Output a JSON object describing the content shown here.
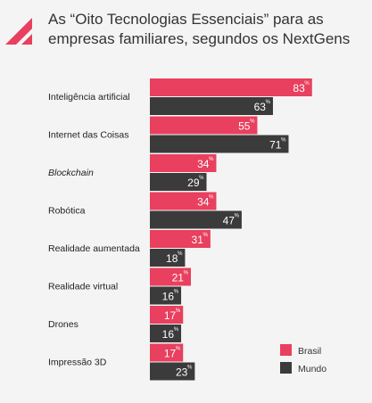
{
  "title": "As “Oito Tecnologias Essenciais” para as empresas familiares, segundos os NextGens",
  "chart_data": {
    "type": "bar",
    "orientation": "horizontal",
    "title": "As “Oito Tecnologias Essenciais” para as empresas familiares, segundos os NextGens",
    "categories": [
      "Inteligência artificial",
      "Internet das Coisas",
      "Blockchain",
      "Robótica",
      "Realidade aumentada",
      "Realidade virtual",
      "Drones",
      "Impressão 3D"
    ],
    "italic_categories": [
      "Blockchain"
    ],
    "series": [
      {
        "name": "Brasil",
        "color": "#e8405e",
        "values": [
          83,
          55,
          34,
          34,
          31,
          21,
          17,
          17
        ]
      },
      {
        "name": "Mundo",
        "color": "#3b3b3b",
        "values": [
          63,
          71,
          29,
          47,
          18,
          16,
          16,
          23
        ]
      }
    ],
    "unit": "%",
    "xlim": [
      0,
      100
    ],
    "legend_position": "bottom-right",
    "grid": false
  }
}
